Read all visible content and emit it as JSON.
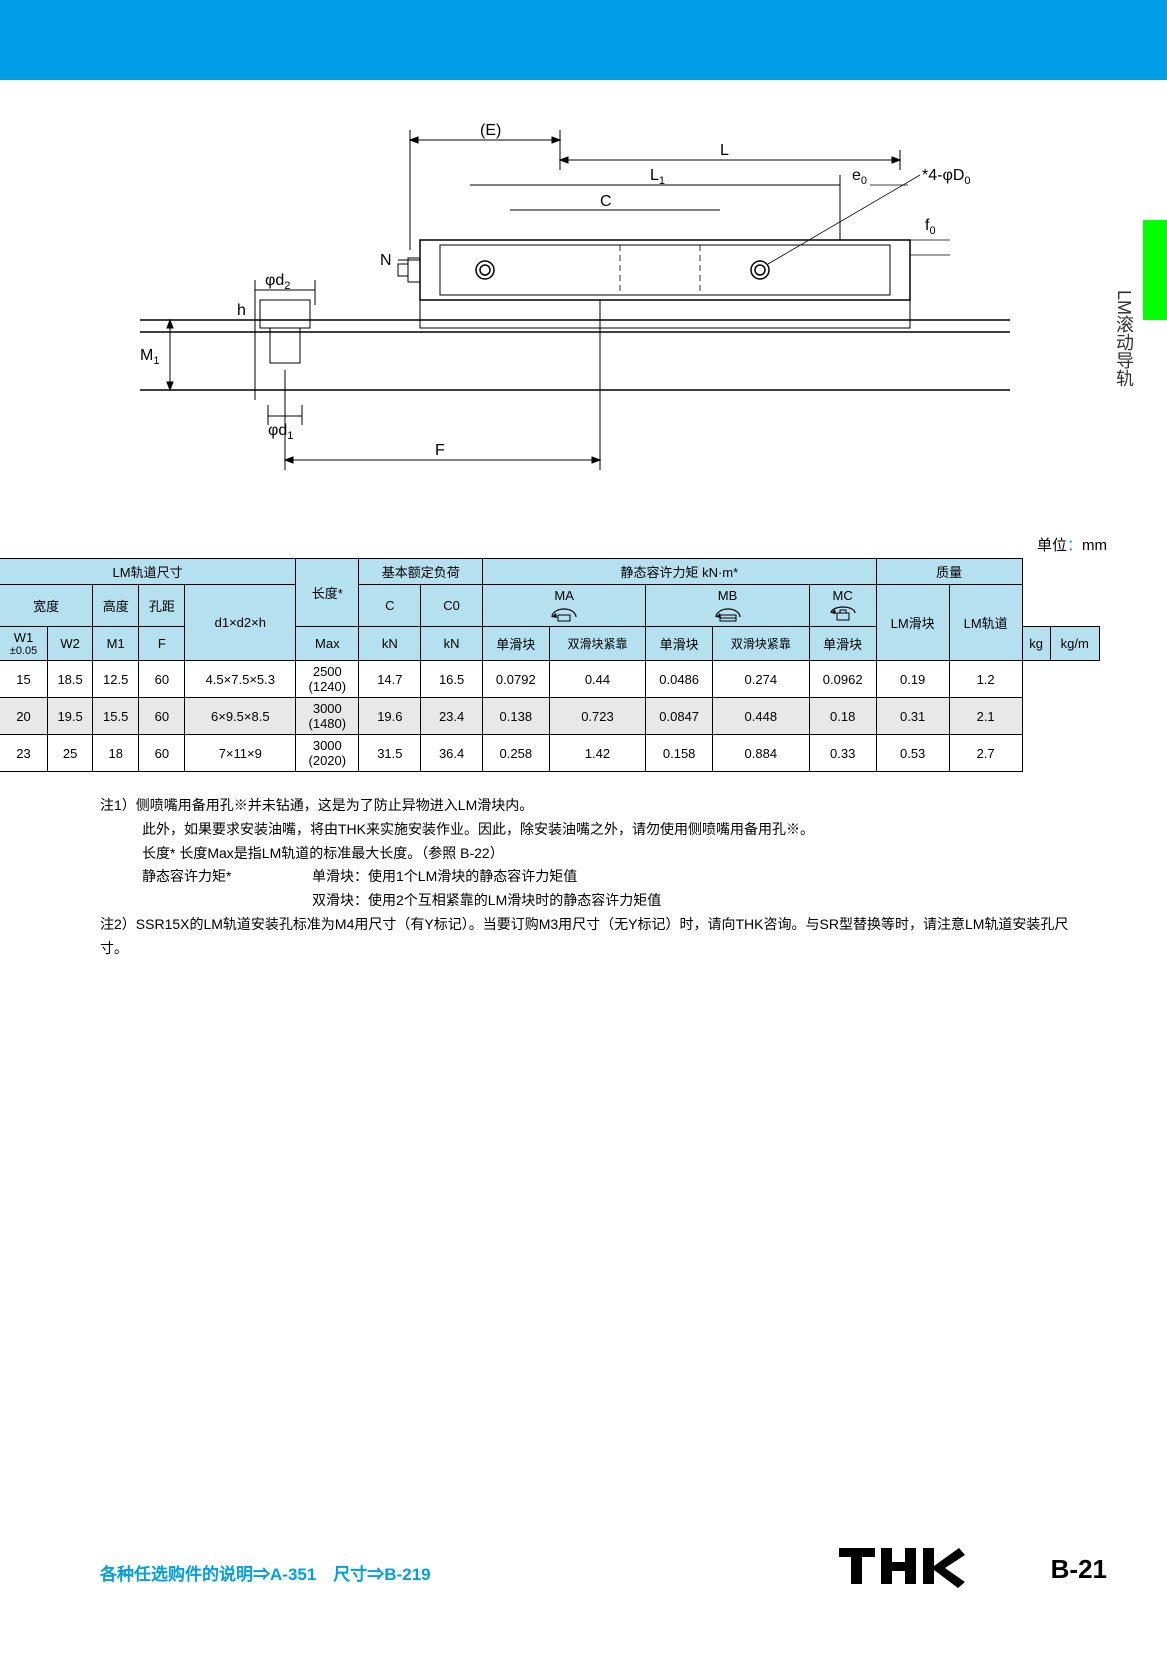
{
  "colors": {
    "topbar": "#00a0e9",
    "sidetab": "#00ff00",
    "table_header_bg": "#b5e0f0",
    "alt_row_bg": "#e8e8e8",
    "accent_blue": "#009fe8",
    "border": "#000000",
    "text": "#333333"
  },
  "side_label": "LM滚动导轨",
  "unit_label_prefix": "单位",
  "unit_label_colon": "：",
  "unit_label_value": "mm",
  "diagram": {
    "labels": [
      "(E)",
      "L",
      "L1",
      "e0",
      "*4-φD0",
      "C",
      "f0",
      "N",
      "φd2",
      "h",
      "M1",
      "φd1",
      "F"
    ]
  },
  "table": {
    "group_headers": {
      "rail": "LM轨道尺寸",
      "load": "基本额定负荷",
      "moment": "静态容许力矩 kN·m*",
      "mass": "质量"
    },
    "sub_headers": {
      "width": "宽度",
      "height": "高度",
      "pitch": "孔距",
      "length": "长度*",
      "c": "C",
      "c0": "C0",
      "ma": "MA",
      "mb": "MB",
      "mc": "MC",
      "lm_block": "LM滑块",
      "lm_rail": "LM轨道"
    },
    "unit_headers": {
      "w1": "W1",
      "w1_tol": "±0.05",
      "w2": "W2",
      "m1": "M1",
      "f": "F",
      "d1d2h": "d1×d2×h",
      "max": "Max",
      "kn1": "kN",
      "kn2": "kN",
      "single": "单滑块",
      "double": "双滑块紧靠",
      "kg": "kg",
      "kgm": "kg/m"
    },
    "rows": [
      {
        "w1": "15",
        "w2": "18.5",
        "m1": "12.5",
        "f": "60",
        "d1d2h": "4.5×7.5×5.3",
        "max": "2500",
        "max_paren": "(1240)",
        "c": "14.7",
        "c0": "16.5",
        "ma_s": "0.0792",
        "ma_d": "0.44",
        "mb_s": "0.0486",
        "mb_d": "0.274",
        "mc_s": "0.0962",
        "mass_block": "0.19",
        "mass_rail": "1.2",
        "alt": false
      },
      {
        "w1": "20",
        "w2": "19.5",
        "m1": "15.5",
        "f": "60",
        "d1d2h": "6×9.5×8.5",
        "max": "3000",
        "max_paren": "(1480)",
        "c": "19.6",
        "c0": "23.4",
        "ma_s": "0.138",
        "ma_d": "0.723",
        "mb_s": "0.0847",
        "mb_d": "0.448",
        "mc_s": "0.18",
        "mass_block": "0.31",
        "mass_rail": "2.1",
        "alt": true
      },
      {
        "w1": "23",
        "w2": "25",
        "m1": "18",
        "f": "60",
        "d1d2h": "7×11×9",
        "max": "3000",
        "max_paren": "(2020)",
        "c": "31.5",
        "c0": "36.4",
        "ma_s": "0.258",
        "ma_d": "1.42",
        "mb_s": "0.158",
        "mb_d": "0.884",
        "mc_s": "0.33",
        "mass_block": "0.53",
        "mass_rail": "2.7",
        "alt": false
      }
    ]
  },
  "notes": {
    "n1_l1": "注1）侧喷嘴用备用孔※并未钻通，这是为了防止异物进入LM滑块内。",
    "n1_l2": "此外，如果要求安装油嘴，将由THK来实施安装作业。因此，除安装油嘴之外，请勿使用侧喷嘴用备用孔※。",
    "n1_l3": "长度* 长度Max是指LM轨道的标准最大长度。（参照 B-22）",
    "n1_l4": "静态容许力矩*",
    "n1_l4b": "单滑块：使用1个LM滑块的静态容许力矩值",
    "n1_l5": "双滑块：使用2个互相紧靠的LM滑块时的静态容许力矩值",
    "n2": "注2）SSR15X的LM轨道安装孔标准为M4用尺寸（有Y标记）。当要订购M3用尺寸（无Y标记）时，请向THK咨询。与SR型替换等时，请注意LM轨道安装孔尺寸。"
  },
  "footer": {
    "left": "各种任选购件的说明⇒A-351　尺寸⇒B-219",
    "page": "B-21",
    "logo": "THK"
  }
}
